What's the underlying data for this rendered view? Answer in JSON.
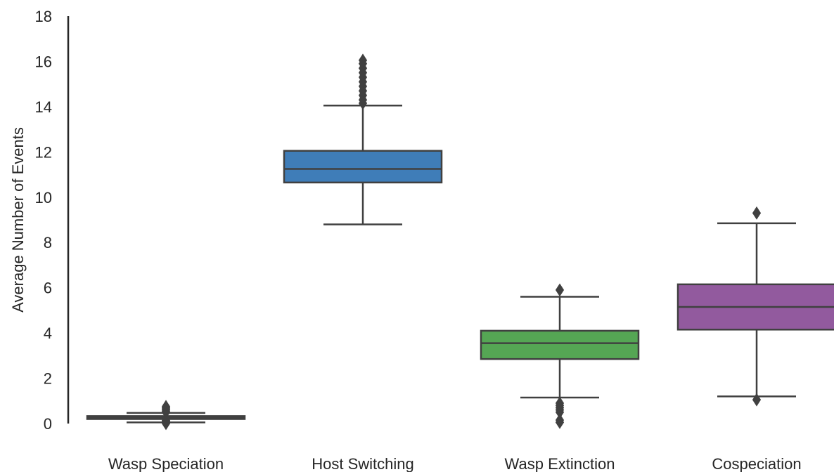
{
  "chart_data": {
    "type": "box",
    "title": "",
    "xlabel": "",
    "ylabel": "Average Number of Events",
    "ylim": [
      0,
      18
    ],
    "yticks": [
      0,
      2,
      4,
      6,
      8,
      10,
      12,
      14,
      16,
      18
    ],
    "grid": false,
    "legend": "none",
    "categories": [
      "Wasp Speciation",
      "Host Switching",
      "Wasp Extinction",
      "Cospeciation"
    ],
    "boxes": [
      {
        "category": "Wasp Speciation",
        "color": "#e34a4f",
        "whisker_low": 0.05,
        "q1": 0.2,
        "median": 0.27,
        "q3": 0.33,
        "whisker_high": 0.47,
        "outliers": [
          0.0,
          0.03,
          0.06,
          0.1,
          0.14,
          0.5,
          0.55,
          0.6,
          0.65,
          0.7,
          0.75
        ]
      },
      {
        "category": "Host Switching",
        "color": "#3f7db8",
        "whisker_low": 8.8,
        "q1": 10.65,
        "median": 11.25,
        "q3": 12.05,
        "whisker_high": 14.05,
        "outliers": [
          14.15,
          14.3,
          14.5,
          14.7,
          14.9,
          15.1,
          15.3,
          15.5,
          15.7,
          15.9,
          16.05
        ]
      },
      {
        "category": "Wasp Extinction",
        "color": "#55a654",
        "whisker_low": 1.15,
        "q1": 2.85,
        "median": 3.55,
        "q3": 4.1,
        "whisker_high": 5.6,
        "outliers": [
          0.05,
          0.15,
          0.5,
          0.6,
          0.7,
          0.8,
          0.9,
          5.9
        ]
      },
      {
        "category": "Cospeciation",
        "color": "#925a9e",
        "whisker_low": 1.2,
        "q1": 4.15,
        "median": 5.15,
        "q3": 6.15,
        "whisker_high": 8.85,
        "outliers": [
          1.05,
          9.3
        ]
      }
    ]
  }
}
